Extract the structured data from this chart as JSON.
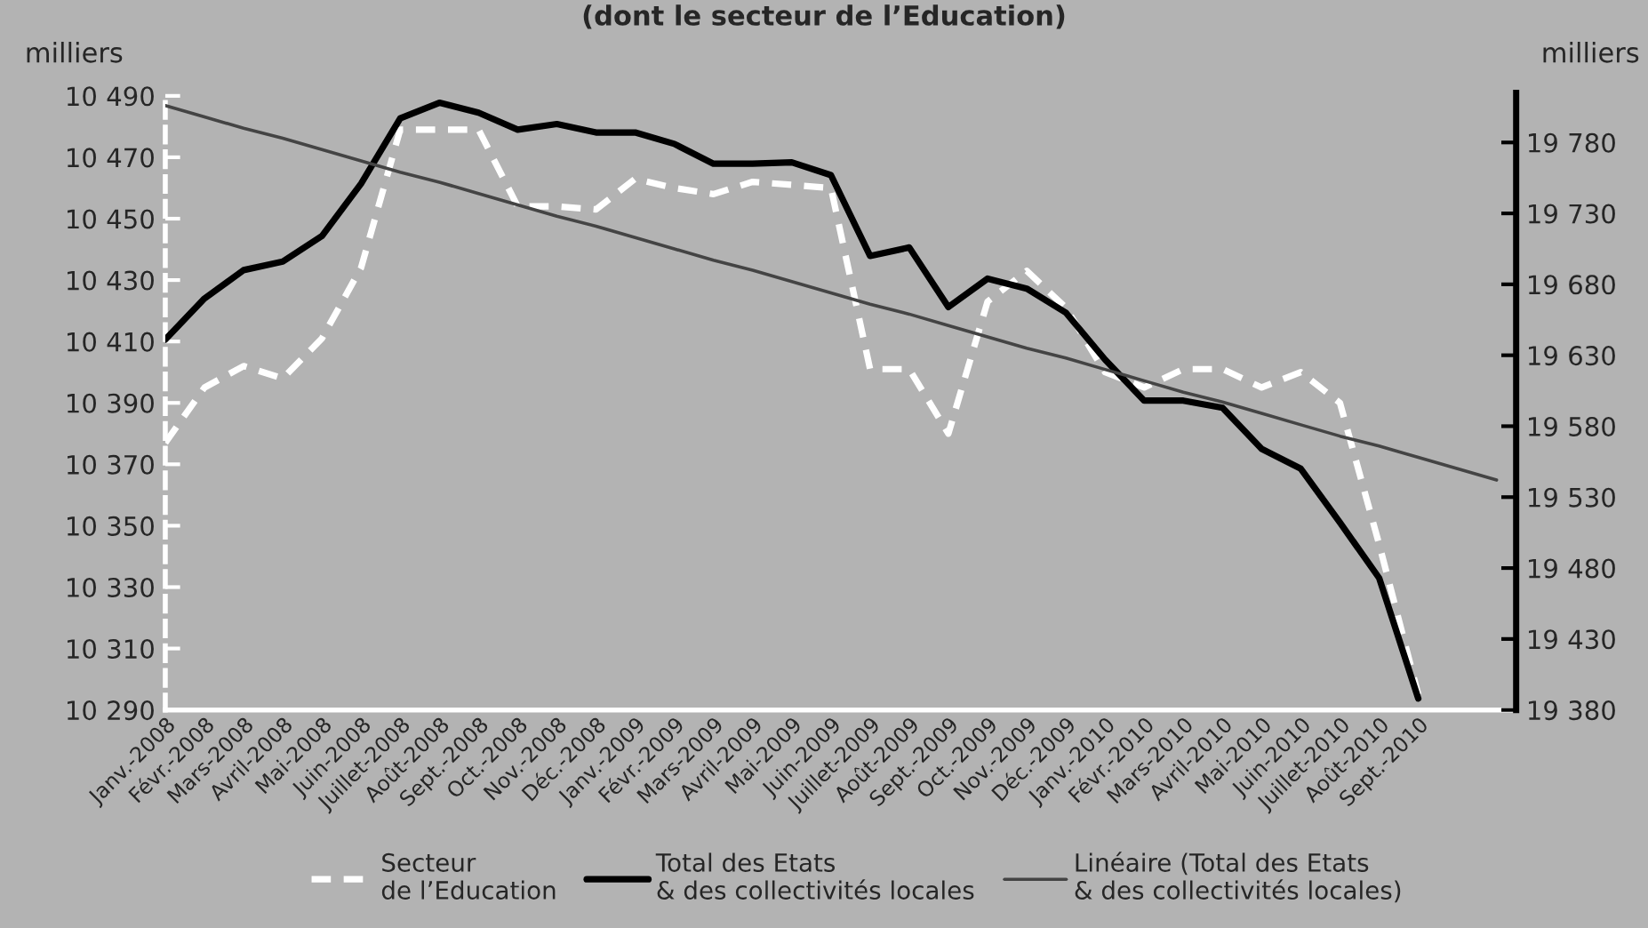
{
  "chart_data": {
    "type": "line",
    "title": "(dont le secteur de l’Education)",
    "ylabel": "milliers",
    "y2label": "milliers",
    "categories": [
      "Janv.-2008",
      "Févr.-2008",
      "Mars-2008",
      "Avril-2008",
      "Mai-2008",
      "Juin-2008",
      "Juillet-2008",
      "Août-2008",
      "Sept.-2008",
      "Oct.-2008",
      "Nov.-2008",
      "Déc.-2008",
      "Janv.-2009",
      "Févr.-2009",
      "Mars-2009",
      "Avril-2009",
      "Mai-2009",
      "Juin-2009",
      "Juillet-2009",
      "Août-2009",
      "Sept.-2009",
      "Oct.-2009",
      "Nov.-2009",
      "Déc.-2009",
      "Janv.-2010",
      "Févr.-2010",
      "Mars-2010",
      "Avril-2010",
      "Mai-2010",
      "Juin-2010",
      "Juillet-2010",
      "Août-2010",
      "Sept.-2010",
      null,
      null
    ],
    "series": [
      {
        "name": "Secteur\nde l’Education",
        "color": "#ffffff",
        "line_style": "dashed",
        "axis": "y",
        "values": [
          10377,
          10395,
          10402,
          10398,
          10411,
          10434,
          10479,
          10479,
          10479,
          10454,
          10454,
          10453,
          10463,
          10460,
          10458,
          10462,
          10461,
          10460,
          10401,
          10401,
          10380,
          10423,
          10433,
          10421,
          10400,
          10395,
          10401,
          10401,
          10395,
          10400,
          10390,
          10344,
          10295,
          null,
          null
        ]
      },
      {
        "name": "Total des Etats\n& des collectivités locales",
        "color": "#000000",
        "line_style": "solid",
        "axis": "y2",
        "values": [
          19641,
          19670,
          19690,
          19696,
          19714,
          19751,
          19797,
          19808,
          19801,
          19789,
          19793,
          19787,
          19787,
          19779,
          19765,
          19765,
          19766,
          19757,
          19700,
          19706,
          19664,
          19684,
          19677,
          19660,
          19627,
          19598,
          19598,
          19593,
          19564,
          19550,
          19512,
          19473,
          19388,
          null,
          null
        ]
      },
      {
        "name": "Linéaire (Total des Etats\n& des collectivités locales)",
        "color": "#444444",
        "line_style": "solid",
        "axis": "y2",
        "values": [
          19806,
          19798,
          19790,
          19783,
          19775,
          19767,
          19759,
          19752,
          19744,
          19736,
          19728,
          19721,
          19713,
          19705,
          19697,
          19690,
          19682,
          19674,
          19666,
          19659,
          19651,
          19643,
          19635,
          19628,
          19620,
          19612,
          19604,
          19597,
          19589,
          19581,
          19573,
          19566,
          19558,
          19550,
          19542
        ]
      }
    ],
    "ylim": [
      10290,
      10491
    ],
    "yticks": [
      {
        "value": 10290,
        "label": "10 290"
      },
      {
        "value": 10310,
        "label": "10 310"
      },
      {
        "value": 10330,
        "label": "10 330"
      },
      {
        "value": 10350,
        "label": "10 350"
      },
      {
        "value": 10370,
        "label": "10 370"
      },
      {
        "value": 10390,
        "label": "10 390"
      },
      {
        "value": 10410,
        "label": "10 410"
      },
      {
        "value": 10430,
        "label": "10 430"
      },
      {
        "value": 10450,
        "label": "10 450"
      },
      {
        "value": 10470,
        "label": "10 470"
      },
      {
        "value": 10490,
        "label": "10 490"
      }
    ],
    "y2lim": [
      19380,
      19815
    ],
    "y2ticks": [
      {
        "value": 19380,
        "label": "19 380"
      },
      {
        "value": 19430,
        "label": "19 430"
      },
      {
        "value": 19480,
        "label": "19 480"
      },
      {
        "value": 19530,
        "label": "19 530"
      },
      {
        "value": 19580,
        "label": "19 580"
      },
      {
        "value": 19630,
        "label": "19 630"
      },
      {
        "value": 19680,
        "label": "19 680"
      },
      {
        "value": 19730,
        "label": "19 730"
      },
      {
        "value": 19780,
        "label": "19 780"
      }
    ],
    "legend": "bottom",
    "grid": false,
    "marker": "none"
  }
}
